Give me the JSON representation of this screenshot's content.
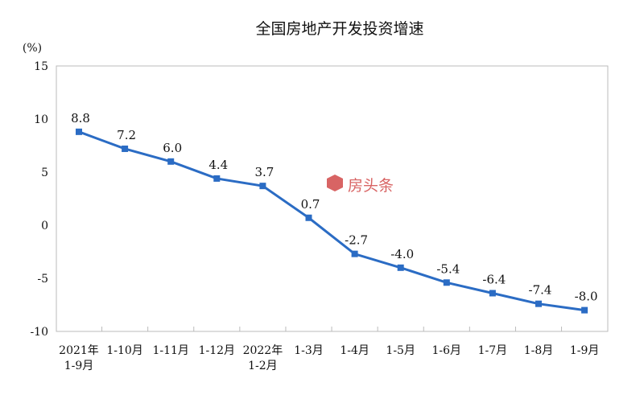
{
  "chart_data": {
    "type": "line",
    "title": "全国房地产开发投资增速",
    "ylabel": "(%)",
    "xlabel": "",
    "ylim": [
      -10,
      15
    ],
    "yticks": [
      15,
      10,
      5,
      0,
      -5,
      -10
    ],
    "categories": [
      [
        "2021年",
        "1-9月"
      ],
      [
        "1-10月"
      ],
      [
        "1-11月"
      ],
      [
        "1-12月"
      ],
      [
        "2022年",
        "1-2月"
      ],
      [
        "1-3月"
      ],
      [
        "1-4月"
      ],
      [
        "1-5月"
      ],
      [
        "1-6月"
      ],
      [
        "1-7月"
      ],
      [
        "1-8月"
      ],
      [
        "1-9月"
      ]
    ],
    "series": [
      {
        "name": "全国房地产开发投资增速",
        "color": "#2b6cc4",
        "values": [
          8.8,
          7.2,
          6.0,
          4.4,
          3.7,
          0.7,
          -2.7,
          -4.0,
          -5.4,
          -6.4,
          -7.4,
          -8.0
        ],
        "labels": [
          "8.8",
          "7.2",
          "6.0",
          "4.4",
          "3.7",
          "0.7",
          "-2.7",
          "-4.0",
          "-5.4",
          "-6.4",
          "-7.4",
          "-8.0"
        ]
      }
    ],
    "grid": false,
    "legend": "none"
  },
  "watermark": {
    "text": "房头条",
    "color": "#d24a4a"
  }
}
